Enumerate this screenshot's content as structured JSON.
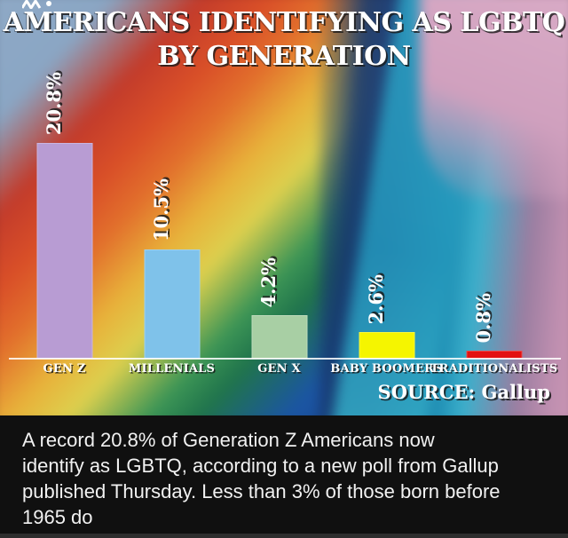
{
  "chart": {
    "title_line1": "AMERICANS IDENTIFYING AS LGBTQ",
    "title_line2": "BY GENERATION",
    "source": "SOURCE: Gallup"
  },
  "chart_data": {
    "type": "bar",
    "title": "AMERICANS IDENTIFYING AS LGBTQ BY GENERATION",
    "categories": [
      "GEN Z",
      "MILLENIALS",
      "GEN X",
      "BABY BOOMERS",
      "TRADITIONALISTS"
    ],
    "values": [
      20.8,
      10.5,
      4.2,
      2.6,
      0.8
    ],
    "value_labels": [
      "20.8%",
      "10.5%",
      "4.2%",
      "2.6%",
      "0.8%"
    ],
    "bar_colors": [
      "#b89cd3",
      "#7fc2ea",
      "#a8cfa4",
      "#f5f500",
      "#e31111"
    ],
    "source": "SOURCE: Gallup",
    "xlabel": "",
    "ylabel": "",
    "ylim": [
      0,
      22
    ],
    "grid": false,
    "legend": false,
    "background": "rainbow pride flag photo"
  },
  "caption": {
    "text": "A record 20.8% of Generation Z Americans now identify as LGBTQ, according to a new poll from Gallup published Thursday. Less than 3% of those born before 1965 do",
    "lines": [
      "A record 20.8% of Generation Z Americans now",
      "identify as LGBTQ, according to a new poll from Gallup",
      "published Thursday. Less than 3% of those born before",
      "1965 do"
    ],
    "background_color": "#101010",
    "text_color": "#f1f1f1"
  }
}
